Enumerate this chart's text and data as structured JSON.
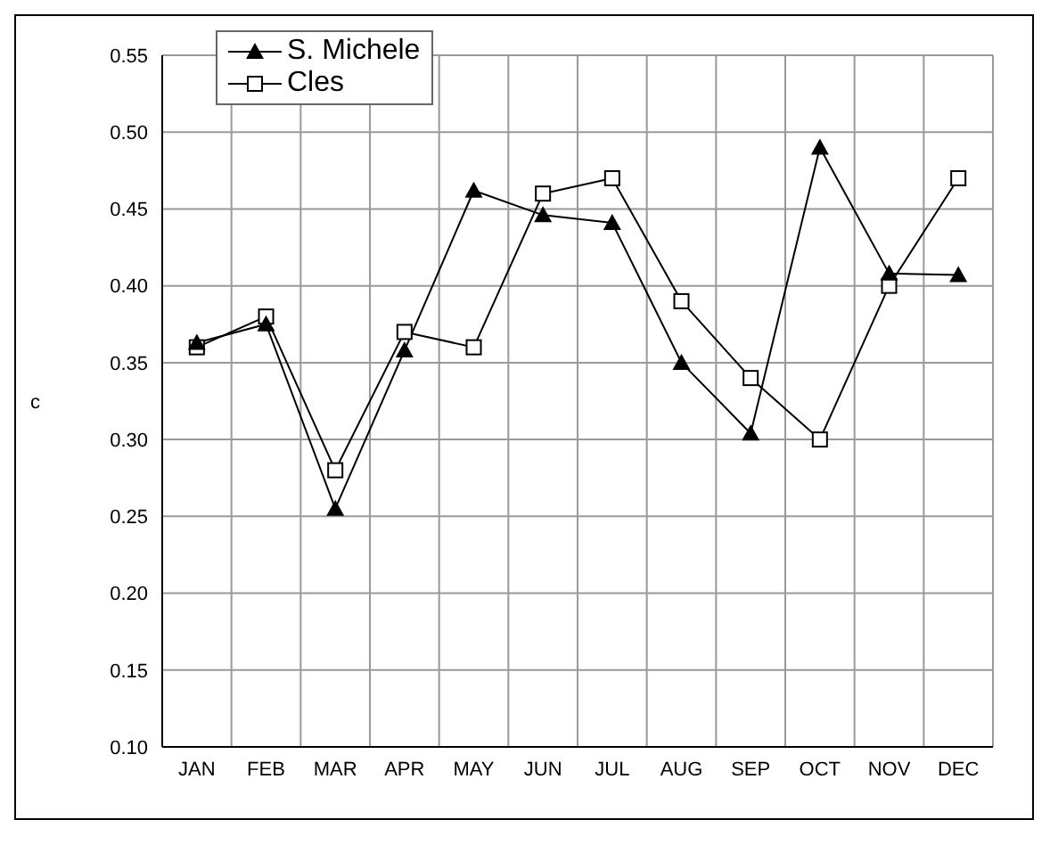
{
  "chart_data": {
    "type": "line",
    "ylabel": "c",
    "categories": [
      "JAN",
      "FEB",
      "MAR",
      "APR",
      "MAY",
      "JUN",
      "JUL",
      "AUG",
      "SEP",
      "OCT",
      "NOV",
      "DEC"
    ],
    "series": [
      {
        "name": "S. Michele",
        "color": "#000000",
        "marker": "triangle",
        "values": [
          0.363,
          0.375,
          0.255,
          0.358,
          0.462,
          0.446,
          0.441,
          0.35,
          0.304,
          0.49,
          0.408,
          0.407
        ]
      },
      {
        "name": "Cles",
        "color": "#000000",
        "marker": "square",
        "values": [
          0.36,
          0.38,
          0.28,
          0.37,
          0.36,
          0.46,
          0.47,
          0.39,
          0.34,
          0.3,
          0.4,
          0.47
        ]
      }
    ],
    "ylim": [
      0.1,
      0.55
    ],
    "yticks": [
      {
        "value": 0.1,
        "label": "0.10"
      },
      {
        "value": 0.15,
        "label": "0.15"
      },
      {
        "value": 0.2,
        "label": "0.20"
      },
      {
        "value": 0.25,
        "label": "0.25"
      },
      {
        "value": 0.3,
        "label": "0.30"
      },
      {
        "value": 0.35,
        "label": "0.35"
      },
      {
        "value": 0.4,
        "label": "0.40"
      },
      {
        "value": 0.45,
        "label": "0.45"
      },
      {
        "value": 0.5,
        "label": "0.50"
      },
      {
        "value": 0.55,
        "label": "0.55"
      }
    ],
    "grid": true,
    "legend": "top left"
  }
}
